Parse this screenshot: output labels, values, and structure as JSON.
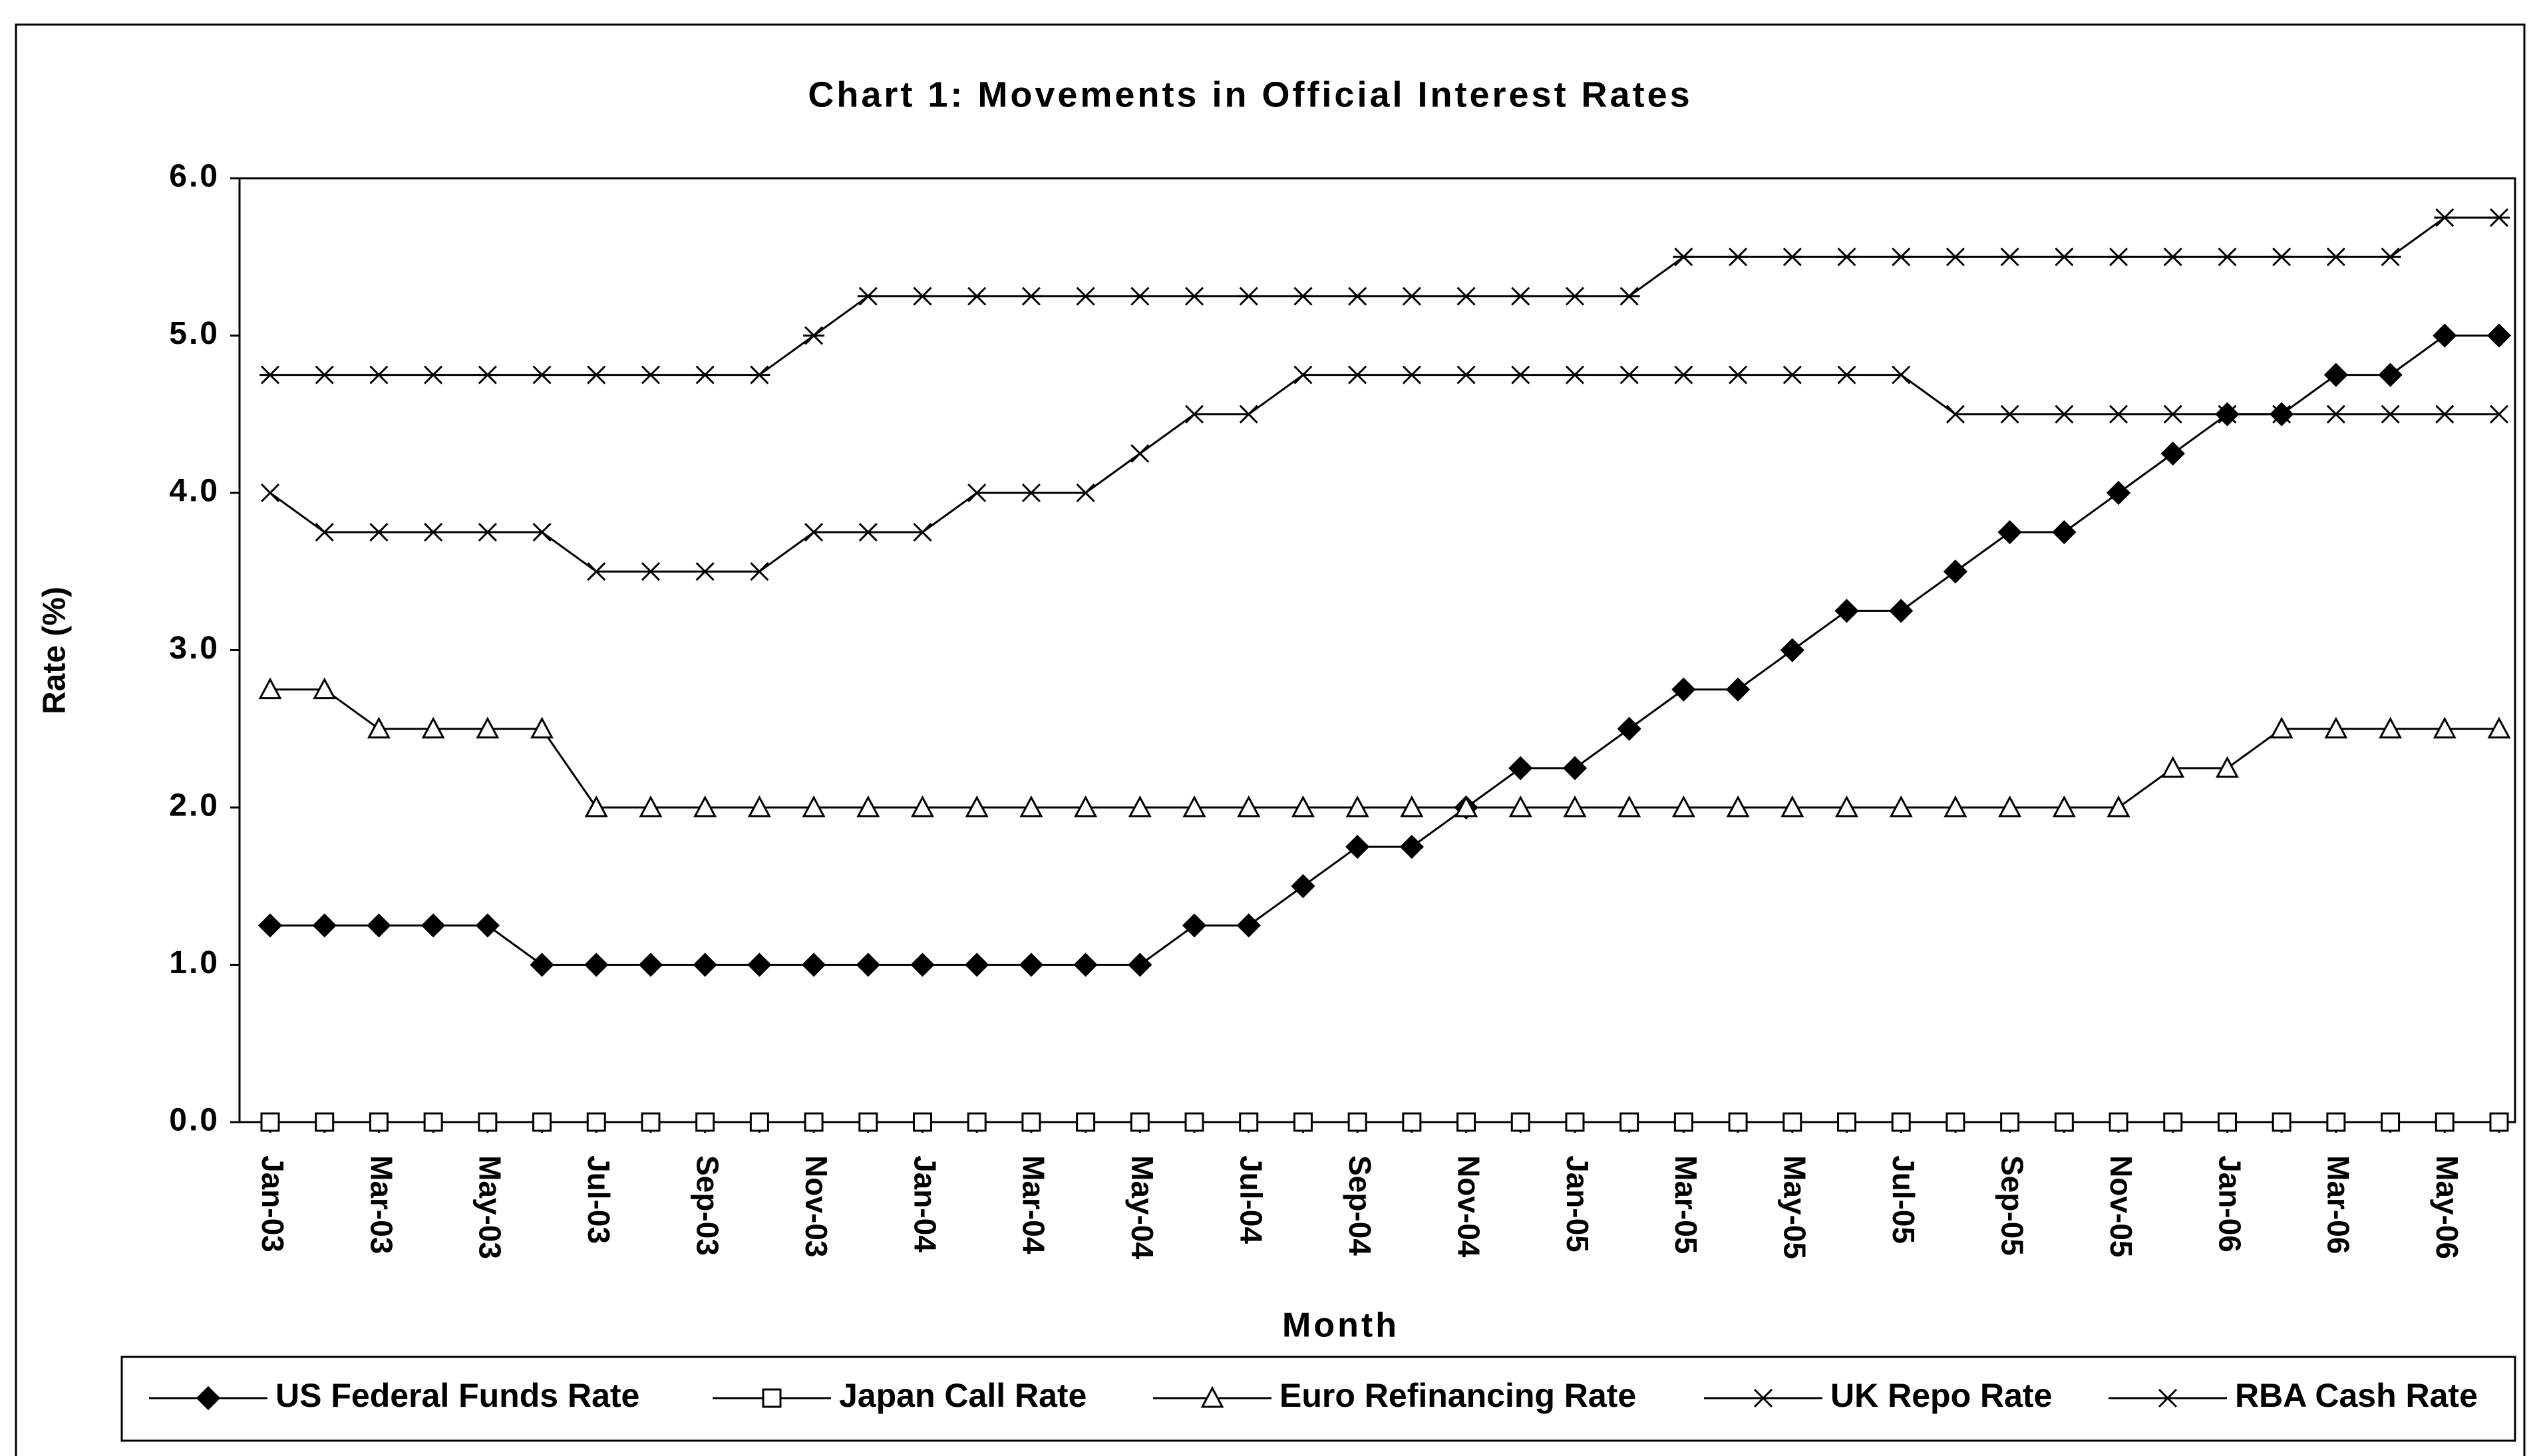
{
  "chart_data": {
    "type": "line",
    "title": "Chart 1: Movements in Official Interest Rates",
    "x_label": "Month",
    "y_label": "Rate (%)",
    "categories": [
      "Jan-03",
      null,
      "Mar-03",
      null,
      "May-03",
      null,
      "Jul-03",
      null,
      "Sep-03",
      null,
      "Nov-03",
      null,
      "Jan-04",
      null,
      "Mar-04",
      null,
      "May-04",
      null,
      "Jul-04",
      null,
      "Sep-04",
      null,
      "Nov-04",
      null,
      "Jan-05",
      null,
      "Mar-05",
      null,
      "May-05",
      null,
      "Jul-05",
      null,
      "Sep-05",
      null,
      "Nov-05",
      null,
      "Jan-06",
      null,
      "Mar-06",
      null,
      "May-06",
      null
    ],
    "ylim": [
      0,
      6
    ],
    "yticks": [
      {
        "value": 0,
        "label": "0.0"
      },
      {
        "value": 1,
        "label": "1.0"
      },
      {
        "value": 2,
        "label": "2.0"
      },
      {
        "value": 3,
        "label": "3.0"
      },
      {
        "value": 4,
        "label": "4.0"
      },
      {
        "value": 5,
        "label": "5.0"
      },
      {
        "value": 6,
        "label": "6.0"
      }
    ],
    "grid": false,
    "legend": "bottom",
    "series": [
      {
        "name": "US Federal Funds Rate",
        "color": "#000000",
        "marker": "diamond",
        "values": [
          1.25,
          1.25,
          1.25,
          1.25,
          1.25,
          1,
          1,
          1,
          1,
          1,
          1,
          1,
          1,
          1,
          1,
          1,
          1,
          1.25,
          1.25,
          1.5,
          1.75,
          1.75,
          2,
          2.25,
          2.25,
          2.5,
          2.75,
          2.75,
          3,
          3.25,
          3.25,
          3.5,
          3.75,
          3.75,
          4,
          4.25,
          4.5,
          4.5,
          4.75,
          4.75,
          5,
          5
        ]
      },
      {
        "name": "Japan Call Rate",
        "color": "#000000",
        "marker": "square",
        "values": [
          0,
          0,
          0,
          0,
          0,
          0,
          0,
          0,
          0,
          0,
          0,
          0,
          0,
          0,
          0,
          0,
          0,
          0,
          0,
          0,
          0,
          0,
          0,
          0,
          0,
          0,
          0,
          0,
          0,
          0,
          0,
          0,
          0,
          0,
          0,
          0,
          0,
          0,
          0,
          0,
          0,
          0
        ]
      },
      {
        "name": "Euro Refinancing Rate",
        "color": "#000000",
        "marker": "triangle",
        "values": [
          2.75,
          2.75,
          2.5,
          2.5,
          2.5,
          2.5,
          2,
          2,
          2,
          2,
          2,
          2,
          2,
          2,
          2,
          2,
          2,
          2,
          2,
          2,
          2,
          2,
          2,
          2,
          2,
          2,
          2,
          2,
          2,
          2,
          2,
          2,
          2,
          2,
          2,
          2.25,
          2.25,
          2.5,
          2.5,
          2.5,
          2.5,
          2.5
        ]
      },
      {
        "name": "UK Repo Rate",
        "color": "#000000",
        "marker": "x",
        "values": [
          4,
          3.75,
          3.75,
          3.75,
          3.75,
          3.75,
          3.5,
          3.5,
          3.5,
          3.5,
          3.75,
          3.75,
          3.75,
          4,
          4,
          4,
          4.25,
          4.5,
          4.5,
          4.75,
          4.75,
          4.75,
          4.75,
          4.75,
          4.75,
          4.75,
          4.75,
          4.75,
          4.75,
          4.75,
          4.75,
          4.5,
          4.5,
          4.5,
          4.5,
          4.5,
          4.5,
          4.5,
          4.5,
          4.5,
          4.5,
          4.5
        ]
      },
      {
        "name": "RBA Cash Rate",
        "color": "#000000",
        "marker": "asterisk",
        "values": [
          4.75,
          4.75,
          4.75,
          4.75,
          4.75,
          4.75,
          4.75,
          4.75,
          4.75,
          4.75,
          5,
          5.25,
          5.25,
          5.25,
          5.25,
          5.25,
          5.25,
          5.25,
          5.25,
          5.25,
          5.25,
          5.25,
          5.25,
          5.25,
          5.25,
          5.25,
          5.5,
          5.5,
          5.5,
          5.5,
          5.5,
          5.5,
          5.5,
          5.5,
          5.5,
          5.5,
          5.5,
          5.5,
          5.5,
          5.5,
          5.75,
          5.75
        ]
      }
    ]
  }
}
